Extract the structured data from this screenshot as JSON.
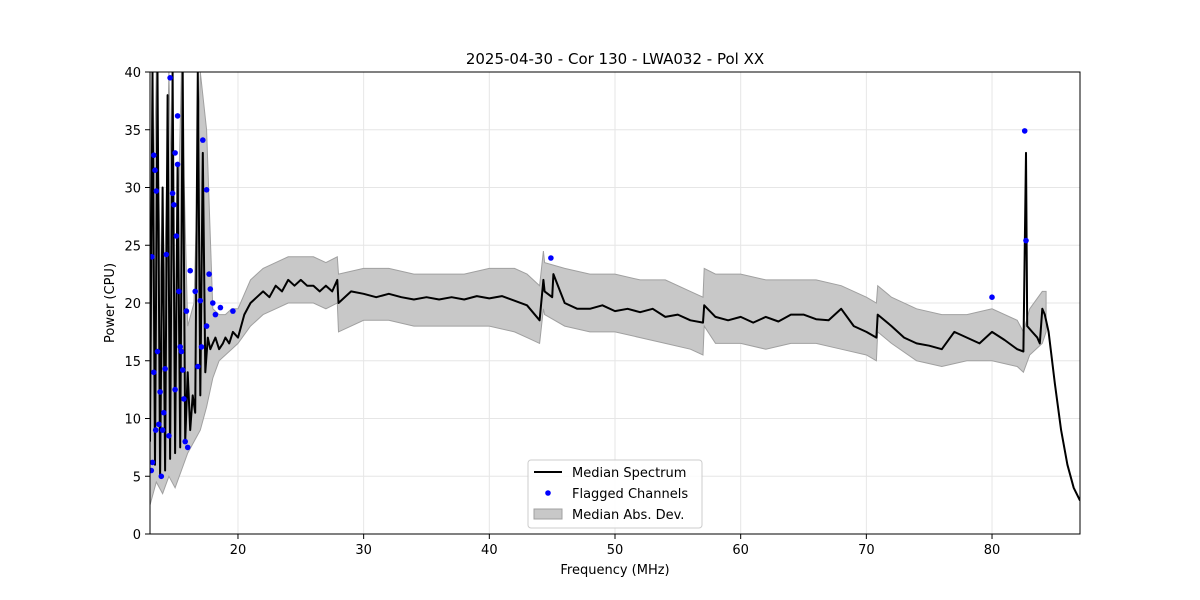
{
  "chart_data": {
    "type": "line",
    "title": "2025-04-30 - Cor 130 - LWA032 - Pol XX",
    "xlabel": "Frequency (MHz)",
    "ylabel": "Power (CPU)",
    "xlim": [
      13,
      87
    ],
    "ylim": [
      0,
      40
    ],
    "xticks": [
      20,
      30,
      40,
      50,
      60,
      70,
      80
    ],
    "yticks": [
      0,
      5,
      10,
      15,
      20,
      25,
      30,
      35,
      40
    ],
    "grid": true,
    "legend_position": "lower-center",
    "legend": [
      "Median Spectrum",
      "Flagged Channels",
      "Median Abs. Dev."
    ],
    "colors": {
      "median": "#000000",
      "flagged": "#0000ff",
      "mad_fill": "#c8c8c8",
      "mad_edge": "#a0a0a0",
      "grid": "#e6e6e6"
    },
    "series": [
      {
        "name": "Median Spectrum",
        "x": [
          13.0,
          13.2,
          13.4,
          13.6,
          13.8,
          14.0,
          14.2,
          14.4,
          14.6,
          14.8,
          15.0,
          15.2,
          15.4,
          15.6,
          15.8,
          16.0,
          16.2,
          16.4,
          16.6,
          16.8,
          17.0,
          17.2,
          17.4,
          17.6,
          17.8,
          18.0,
          18.2,
          18.5,
          18.8,
          19.0,
          19.3,
          19.6,
          20.0,
          20.5,
          21.0,
          21.5,
          22.0,
          22.5,
          23.0,
          23.5,
          24.0,
          24.5,
          25.0,
          25.5,
          26.0,
          26.5,
          27.0,
          27.5,
          27.9,
          28.0,
          29.0,
          30.0,
          31.0,
          32.0,
          33.0,
          34.0,
          35.0,
          36.0,
          37.0,
          38.0,
          39.0,
          40.0,
          41.0,
          42.0,
          43.0,
          44.0,
          44.3,
          44.4,
          45.0,
          45.1,
          46.0,
          47.0,
          48.0,
          49.0,
          50.0,
          51.0,
          52.0,
          53.0,
          54.0,
          55.0,
          56.0,
          57.0,
          57.1,
          58.0,
          59.0,
          60.0,
          61.0,
          62.0,
          63.0,
          64.0,
          65.0,
          66.0,
          67.0,
          68.0,
          69.0,
          70.0,
          70.8,
          70.9,
          72.0,
          73.0,
          74.0,
          75.0,
          76.0,
          77.0,
          78.0,
          79.0,
          80.0,
          81.0,
          82.0,
          82.5,
          82.7,
          82.8,
          83.2,
          83.6,
          83.8,
          84.0,
          84.2,
          84.5,
          85.0,
          85.5,
          86.0,
          86.5,
          87.0
        ],
        "values": [
          8.0,
          40.0,
          6.0,
          40.0,
          5.0,
          30.0,
          5.5,
          38.0,
          6.5,
          40.0,
          7.0,
          32.0,
          7.5,
          40.0,
          8.0,
          14.0,
          9.0,
          12.0,
          10.5,
          40.0,
          12.0,
          33.0,
          14.0,
          17.0,
          16.0,
          16.5,
          17.0,
          16.0,
          16.5,
          17.0,
          16.5,
          17.5,
          17.0,
          19.0,
          20.0,
          20.5,
          21.0,
          20.5,
          21.5,
          21.0,
          22.0,
          21.5,
          22.0,
          21.5,
          21.5,
          21.0,
          21.5,
          21.0,
          22.0,
          20.0,
          21.0,
          20.8,
          20.5,
          20.8,
          20.5,
          20.3,
          20.5,
          20.3,
          20.5,
          20.3,
          20.6,
          20.4,
          20.6,
          20.2,
          19.8,
          18.5,
          22.0,
          21.0,
          20.5,
          22.5,
          20.0,
          19.5,
          19.5,
          19.8,
          19.3,
          19.5,
          19.2,
          19.5,
          18.8,
          19.0,
          18.5,
          18.3,
          19.8,
          18.8,
          18.5,
          18.8,
          18.3,
          18.8,
          18.4,
          19.0,
          19.0,
          18.6,
          18.5,
          19.5,
          18.0,
          17.5,
          17.0,
          19.0,
          18.0,
          17.0,
          16.5,
          16.3,
          16.0,
          17.5,
          17.0,
          16.5,
          17.5,
          16.8,
          16.0,
          15.8,
          33.0,
          18.0,
          17.5,
          17.0,
          16.5,
          19.5,
          19.0,
          17.5,
          13.0,
          9.0,
          6.0,
          4.0,
          2.9
        ]
      }
    ],
    "mad_band": {
      "name": "Median Abs. Dev.",
      "x": [
        13.0,
        13.5,
        14.0,
        14.5,
        15.0,
        15.5,
        16.0,
        16.5,
        17.0,
        17.5,
        18.0,
        18.5,
        19.0,
        19.5,
        20.0,
        21.0,
        22.0,
        23.0,
        24.0,
        25.0,
        26.0,
        27.0,
        27.9,
        28.0,
        30.0,
        32.0,
        34.0,
        36.0,
        38.0,
        40.0,
        42.0,
        43.0,
        44.0,
        44.3,
        44.4,
        46.0,
        48.0,
        50.0,
        52.0,
        54.0,
        56.0,
        57.0,
        57.1,
        58.0,
        60.0,
        62.0,
        64.0,
        66.0,
        68.0,
        70.0,
        70.8,
        70.9,
        72.0,
        74.0,
        76.0,
        78.0,
        80.0,
        82.0,
        82.5,
        83.0,
        84.0,
        84.3
      ],
      "lower": [
        2.5,
        4.5,
        3.5,
        5.0,
        4.0,
        5.5,
        7.0,
        8.0,
        9.0,
        11.0,
        13.5,
        15.0,
        15.5,
        16.0,
        16.5,
        18.0,
        19.0,
        19.5,
        20.0,
        20.0,
        20.0,
        19.5,
        20.0,
        17.5,
        18.5,
        18.5,
        18.0,
        18.0,
        18.0,
        18.0,
        17.5,
        17.0,
        16.5,
        19.5,
        19.0,
        18.0,
        17.5,
        17.5,
        17.0,
        16.5,
        16.0,
        15.5,
        18.0,
        16.5,
        16.5,
        16.0,
        16.5,
        16.5,
        16.0,
        15.5,
        15.0,
        17.5,
        16.5,
        15.0,
        14.5,
        15.0,
        15.0,
        14.5,
        14.0,
        15.5,
        16.5,
        17.5
      ],
      "upper": [
        12.0,
        40.0,
        14.0,
        40.0,
        16.0,
        40.0,
        18.0,
        20.0,
        40.0,
        35.0,
        19.5,
        19.0,
        19.0,
        19.5,
        19.5,
        22.0,
        23.0,
        23.5,
        24.0,
        24.0,
        24.0,
        23.5,
        24.0,
        22.5,
        23.0,
        23.0,
        22.5,
        22.5,
        22.5,
        23.0,
        23.0,
        22.5,
        21.5,
        24.5,
        23.5,
        23.0,
        22.5,
        22.5,
        22.0,
        22.0,
        21.0,
        20.5,
        23.0,
        22.5,
        22.5,
        22.0,
        22.0,
        22.0,
        21.5,
        20.5,
        20.0,
        21.5,
        20.5,
        19.5,
        19.0,
        19.0,
        19.5,
        18.5,
        17.5,
        19.5,
        21.0,
        21.0
      ]
    },
    "flagged_channels": {
      "name": "Flagged Channels",
      "x": [
        13.1,
        13.15,
        13.2,
        13.3,
        13.3,
        13.4,
        13.45,
        13.5,
        13.6,
        13.7,
        13.8,
        13.9,
        14.0,
        14.1,
        14.2,
        14.3,
        14.5,
        14.6,
        14.8,
        14.9,
        15.0,
        15.0,
        15.1,
        15.2,
        15.2,
        15.3,
        15.4,
        15.5,
        15.6,
        15.7,
        15.8,
        15.9,
        16.0,
        16.2,
        16.6,
        16.8,
        17.0,
        17.1,
        17.2,
        17.5,
        17.5,
        17.7,
        17.8,
        18.0,
        18.2,
        18.6,
        19.6,
        44.9,
        80.0,
        82.6,
        82.7
      ],
      "values": [
        5.5,
        24.0,
        6.2,
        32.8,
        14.0,
        31.5,
        9.0,
        29.7,
        15.8,
        9.5,
        12.3,
        5.0,
        9.0,
        10.5,
        14.3,
        24.2,
        8.5,
        39.5,
        29.5,
        28.5,
        12.5,
        33.0,
        25.8,
        36.2,
        32.0,
        21.0,
        16.2,
        15.8,
        14.2,
        11.7,
        8.0,
        19.3,
        7.5,
        22.8,
        21.0,
        14.5,
        20.2,
        16.2,
        34.1,
        29.8,
        18.0,
        22.5,
        21.2,
        20.0,
        19.0,
        19.6,
        19.3,
        23.9,
        20.5,
        34.9,
        25.4
      ]
    }
  }
}
